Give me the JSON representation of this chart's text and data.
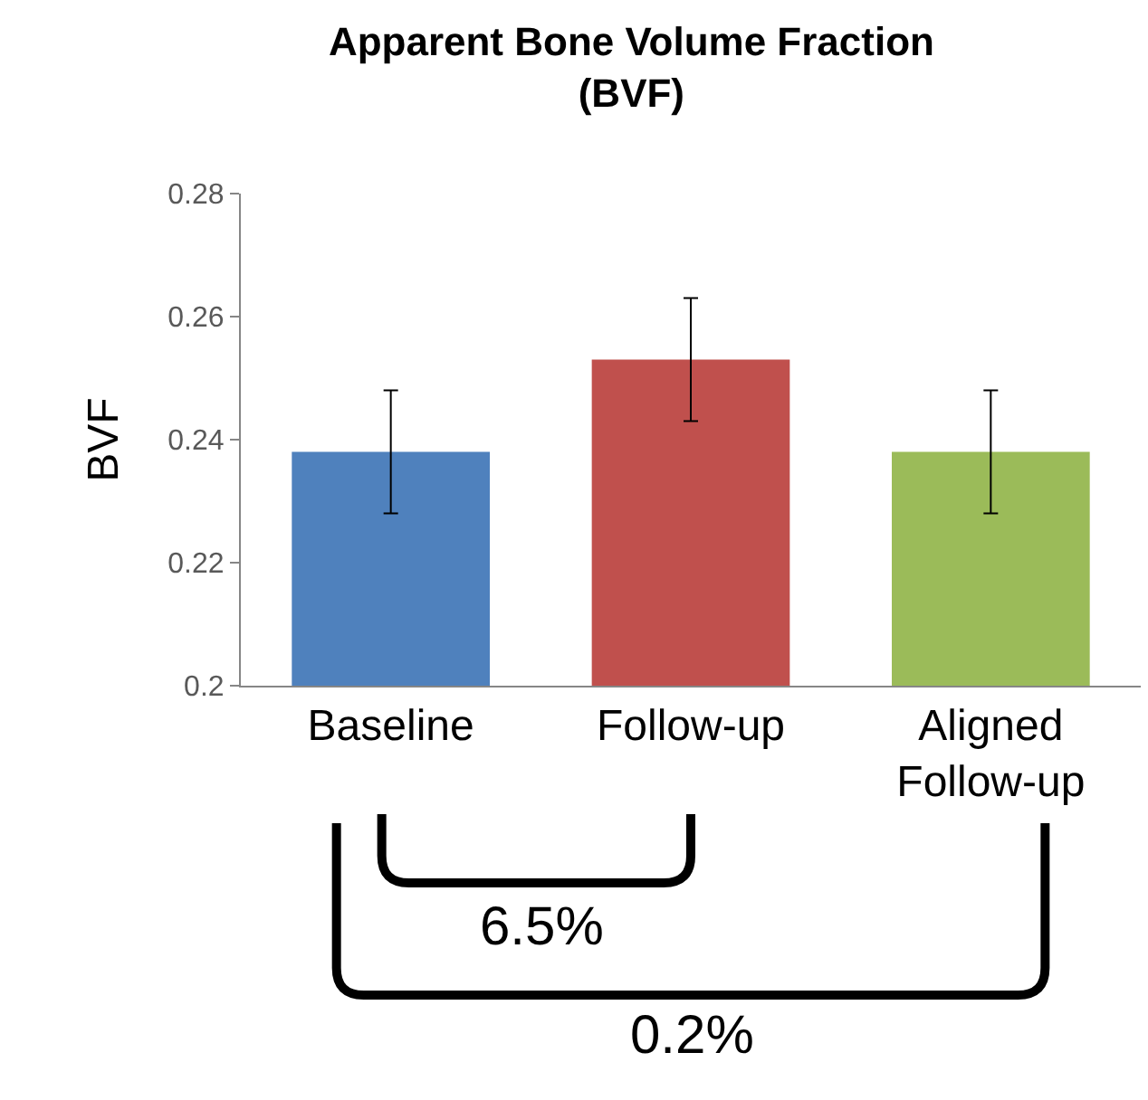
{
  "chart_data": {
    "type": "bar",
    "title": "Apparent Bone Volume Fraction\n(BVF)",
    "ylabel": "BVF",
    "categories": [
      "Baseline",
      "Follow-up",
      "Aligned\nFollow-up"
    ],
    "values": [
      0.238,
      0.253,
      0.238
    ],
    "colors": [
      "#4f81bd",
      "#c0504d",
      "#9bbb59"
    ],
    "errors": [
      0.01,
      0.01,
      0.01
    ],
    "ylim": [
      0.2,
      0.28
    ],
    "yticks": [
      0.2,
      0.22,
      0.24,
      0.26,
      0.28
    ],
    "grid": false,
    "annotations": [
      "6.5%",
      "0.2%"
    ]
  }
}
